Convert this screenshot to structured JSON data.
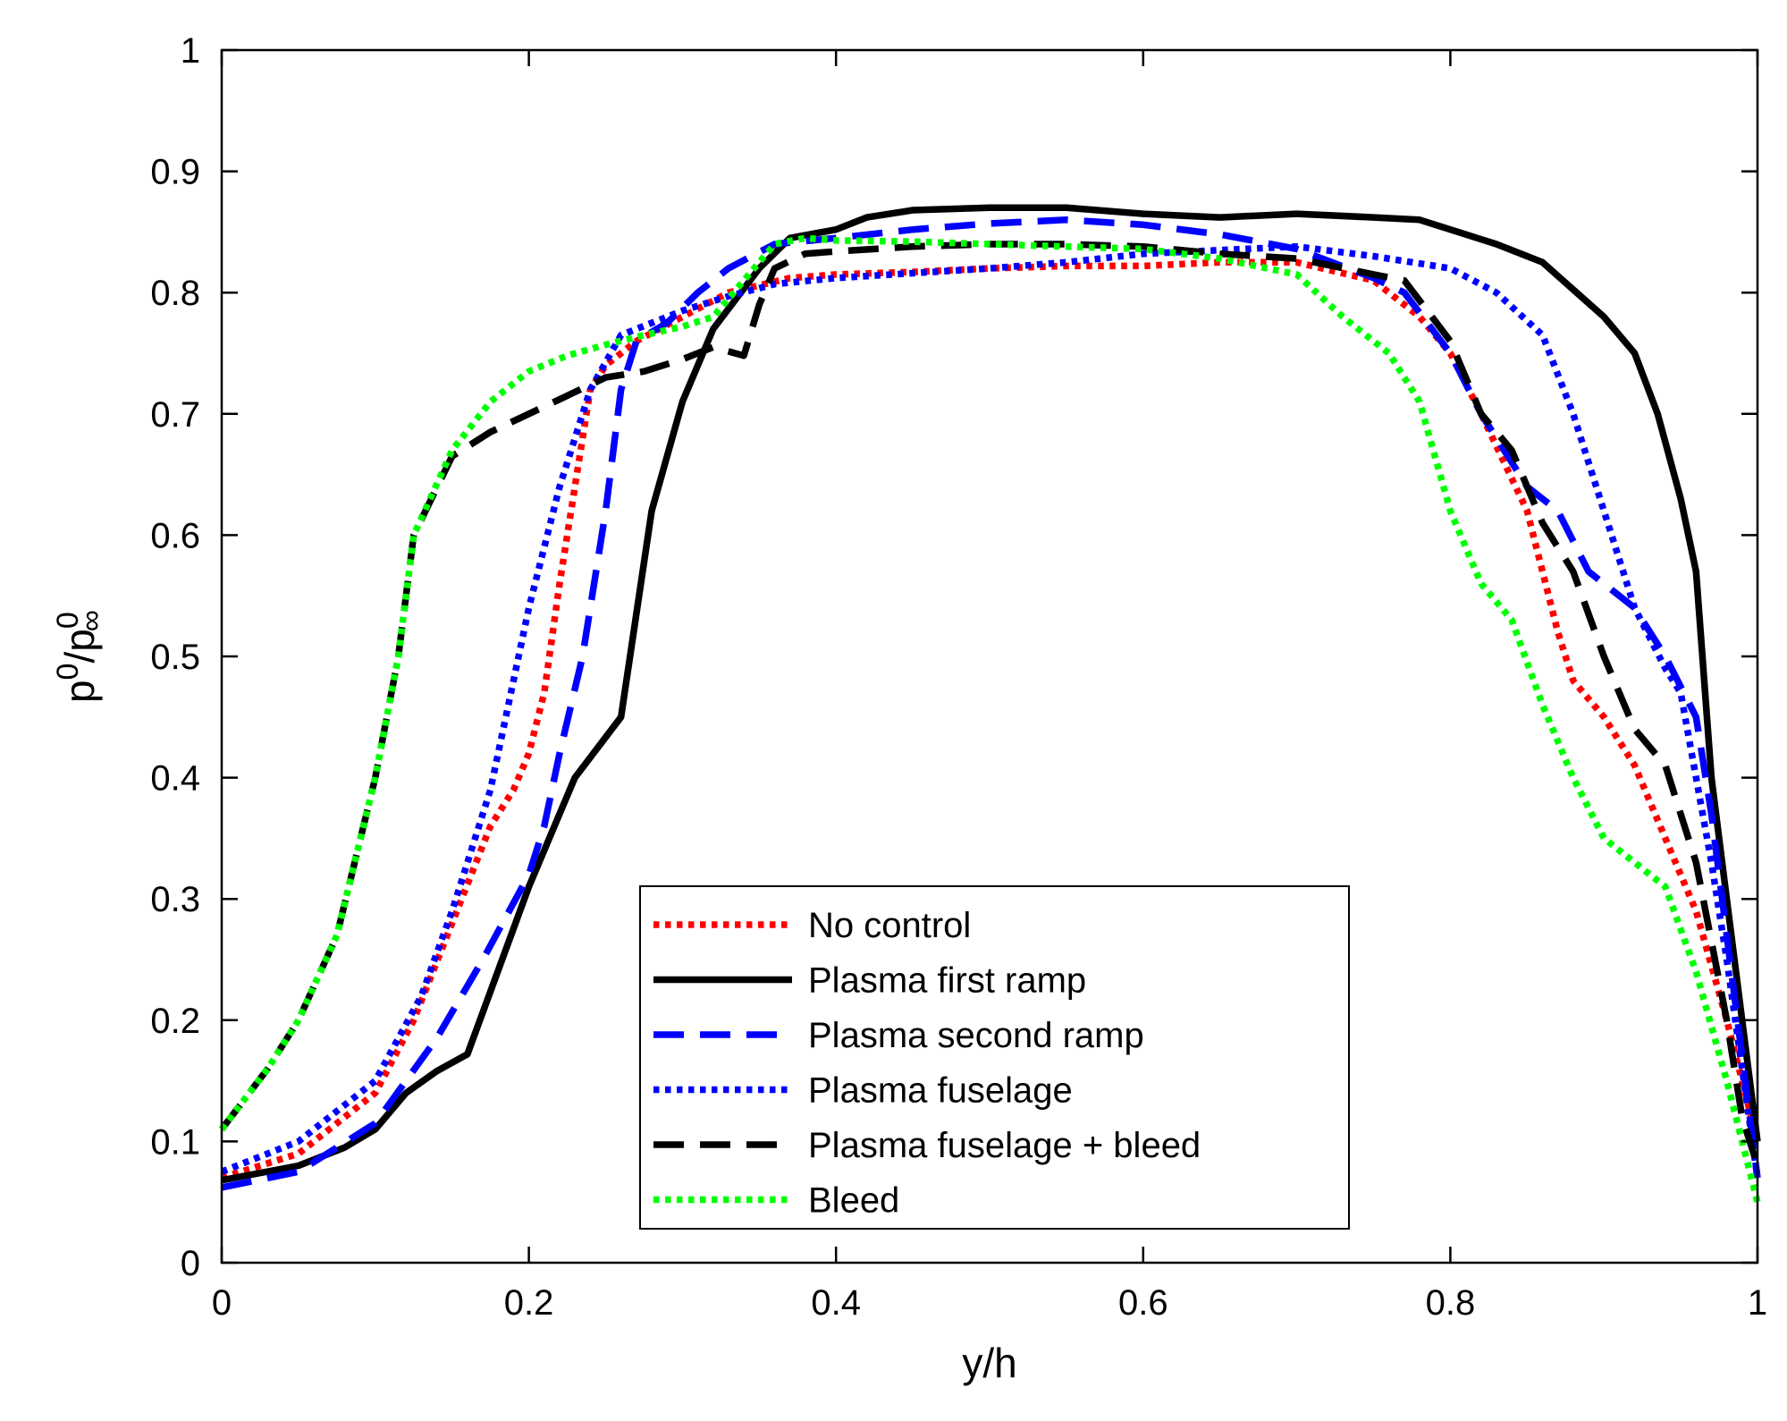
{
  "chart_data": {
    "type": "line",
    "title": "",
    "xlabel": "y/h",
    "ylabel": {
      "base": "p",
      "sup": "0",
      "slash": "/",
      "base2": "p",
      "sub2": "∞",
      "sup2": "0"
    },
    "xlim": [
      0,
      1
    ],
    "ylim": [
      0,
      1
    ],
    "grid": false,
    "legend_position": "bottom-center",
    "xticks": [
      0,
      0.2,
      0.4,
      0.6,
      0.8,
      1
    ],
    "xtick_labels": [
      "0",
      "0.2",
      "0.4",
      "0.6",
      "0.8",
      "1"
    ],
    "yticks": [
      0,
      0.1,
      0.2,
      0.3,
      0.4,
      0.5,
      0.6,
      0.7,
      0.8,
      0.9,
      1
    ],
    "ytick_labels": [
      "0",
      "0.1",
      "0.2",
      "0.3",
      "0.4",
      "0.5",
      "0.6",
      "0.7",
      "0.8",
      "0.9",
      "1"
    ],
    "series": [
      {
        "name": "No control",
        "color": "#ff0000",
        "style": "dotted",
        "points": [
          [
            0,
            0.07
          ],
          [
            0.05,
            0.09
          ],
          [
            0.1,
            0.14
          ],
          [
            0.125,
            0.2
          ],
          [
            0.15,
            0.28
          ],
          [
            0.175,
            0.36
          ],
          [
            0.19,
            0.39
          ],
          [
            0.2,
            0.42
          ],
          [
            0.21,
            0.47
          ],
          [
            0.22,
            0.56
          ],
          [
            0.23,
            0.64
          ],
          [
            0.24,
            0.72
          ],
          [
            0.25,
            0.74
          ],
          [
            0.27,
            0.76
          ],
          [
            0.3,
            0.78
          ],
          [
            0.33,
            0.8
          ],
          [
            0.37,
            0.812
          ],
          [
            0.4,
            0.815
          ],
          [
            0.45,
            0.817
          ],
          [
            0.5,
            0.82
          ],
          [
            0.55,
            0.822
          ],
          [
            0.6,
            0.822
          ],
          [
            0.65,
            0.825
          ],
          [
            0.7,
            0.825
          ],
          [
            0.75,
            0.81
          ],
          [
            0.78,
            0.78
          ],
          [
            0.8,
            0.75
          ],
          [
            0.82,
            0.7
          ],
          [
            0.85,
            0.62
          ],
          [
            0.87,
            0.52
          ],
          [
            0.88,
            0.48
          ],
          [
            0.9,
            0.45
          ],
          [
            0.92,
            0.41
          ],
          [
            0.94,
            0.35
          ],
          [
            0.96,
            0.29
          ],
          [
            0.98,
            0.2
          ],
          [
            1,
            0.1
          ]
        ]
      },
      {
        "name": "Plasma first ramp",
        "color": "#000000",
        "style": "solid",
        "points": [
          [
            0,
            0.068
          ],
          [
            0.05,
            0.08
          ],
          [
            0.08,
            0.095
          ],
          [
            0.1,
            0.11
          ],
          [
            0.12,
            0.14
          ],
          [
            0.14,
            0.158
          ],
          [
            0.16,
            0.172
          ],
          [
            0.2,
            0.31
          ],
          [
            0.23,
            0.4
          ],
          [
            0.26,
            0.45
          ],
          [
            0.28,
            0.62
          ],
          [
            0.3,
            0.71
          ],
          [
            0.32,
            0.77
          ],
          [
            0.35,
            0.82
          ],
          [
            0.37,
            0.845
          ],
          [
            0.4,
            0.852
          ],
          [
            0.42,
            0.862
          ],
          [
            0.45,
            0.868
          ],
          [
            0.5,
            0.87
          ],
          [
            0.55,
            0.87
          ],
          [
            0.6,
            0.865
          ],
          [
            0.65,
            0.862
          ],
          [
            0.7,
            0.865
          ],
          [
            0.75,
            0.862
          ],
          [
            0.78,
            0.86
          ],
          [
            0.8,
            0.852
          ],
          [
            0.83,
            0.84
          ],
          [
            0.86,
            0.825
          ],
          [
            0.9,
            0.78
          ],
          [
            0.92,
            0.75
          ],
          [
            0.935,
            0.7
          ],
          [
            0.95,
            0.63
          ],
          [
            0.96,
            0.57
          ],
          [
            0.97,
            0.4
          ],
          [
            0.98,
            0.3
          ],
          [
            0.99,
            0.2
          ],
          [
            1,
            0.1
          ]
        ]
      },
      {
        "name": "Plasma second ramp",
        "color": "#0000ff",
        "style": "dashed",
        "points": [
          [
            0,
            0.062
          ],
          [
            0.05,
            0.075
          ],
          [
            0.1,
            0.115
          ],
          [
            0.14,
            0.185
          ],
          [
            0.17,
            0.25
          ],
          [
            0.2,
            0.32
          ],
          [
            0.21,
            0.36
          ],
          [
            0.22,
            0.42
          ],
          [
            0.235,
            0.5
          ],
          [
            0.25,
            0.62
          ],
          [
            0.26,
            0.72
          ],
          [
            0.27,
            0.76
          ],
          [
            0.29,
            0.775
          ],
          [
            0.31,
            0.8
          ],
          [
            0.33,
            0.82
          ],
          [
            0.36,
            0.84
          ],
          [
            0.4,
            0.845
          ],
          [
            0.45,
            0.852
          ],
          [
            0.5,
            0.857
          ],
          [
            0.55,
            0.86
          ],
          [
            0.6,
            0.856
          ],
          [
            0.65,
            0.848
          ],
          [
            0.7,
            0.836
          ],
          [
            0.75,
            0.812
          ],
          [
            0.77,
            0.8
          ],
          [
            0.8,
            0.75
          ],
          [
            0.82,
            0.7
          ],
          [
            0.85,
            0.64
          ],
          [
            0.87,
            0.62
          ],
          [
            0.89,
            0.57
          ],
          [
            0.92,
            0.54
          ],
          [
            0.94,
            0.5
          ],
          [
            0.96,
            0.45
          ],
          [
            0.97,
            0.37
          ],
          [
            0.98,
            0.27
          ],
          [
            0.99,
            0.17
          ],
          [
            1,
            0.07
          ]
        ]
      },
      {
        "name": "Plasma fuselage",
        "color": "#0000ff",
        "style": "dotted",
        "points": [
          [
            0,
            0.075
          ],
          [
            0.05,
            0.1
          ],
          [
            0.1,
            0.15
          ],
          [
            0.13,
            0.22
          ],
          [
            0.15,
            0.29
          ],
          [
            0.175,
            0.39
          ],
          [
            0.2,
            0.54
          ],
          [
            0.22,
            0.64
          ],
          [
            0.24,
            0.72
          ],
          [
            0.26,
            0.765
          ],
          [
            0.28,
            0.775
          ],
          [
            0.3,
            0.785
          ],
          [
            0.33,
            0.797
          ],
          [
            0.36,
            0.807
          ],
          [
            0.4,
            0.812
          ],
          [
            0.45,
            0.816
          ],
          [
            0.5,
            0.82
          ],
          [
            0.55,
            0.825
          ],
          [
            0.6,
            0.832
          ],
          [
            0.65,
            0.835
          ],
          [
            0.7,
            0.838
          ],
          [
            0.75,
            0.83
          ],
          [
            0.8,
            0.82
          ],
          [
            0.83,
            0.8
          ],
          [
            0.86,
            0.765
          ],
          [
            0.88,
            0.7
          ],
          [
            0.9,
            0.62
          ],
          [
            0.92,
            0.54
          ],
          [
            0.94,
            0.49
          ],
          [
            0.95,
            0.47
          ],
          [
            0.96,
            0.4
          ],
          [
            0.97,
            0.33
          ],
          [
            0.98,
            0.25
          ],
          [
            0.99,
            0.16
          ],
          [
            1,
            0.07
          ]
        ]
      },
      {
        "name": "Plasma fuselage + bleed",
        "color": "#000000",
        "style": "dashed",
        "points": [
          [
            0,
            0.11
          ],
          [
            0.03,
            0.16
          ],
          [
            0.05,
            0.2
          ],
          [
            0.075,
            0.27
          ],
          [
            0.1,
            0.4
          ],
          [
            0.115,
            0.5
          ],
          [
            0.125,
            0.6
          ],
          [
            0.15,
            0.665
          ],
          [
            0.175,
            0.685
          ],
          [
            0.2,
            0.7
          ],
          [
            0.225,
            0.715
          ],
          [
            0.25,
            0.73
          ],
          [
            0.275,
            0.735
          ],
          [
            0.3,
            0.745
          ],
          [
            0.32,
            0.755
          ],
          [
            0.34,
            0.748
          ],
          [
            0.35,
            0.79
          ],
          [
            0.36,
            0.82
          ],
          [
            0.38,
            0.832
          ],
          [
            0.4,
            0.834
          ],
          [
            0.45,
            0.838
          ],
          [
            0.5,
            0.84
          ],
          [
            0.55,
            0.84
          ],
          [
            0.6,
            0.838
          ],
          [
            0.65,
            0.832
          ],
          [
            0.7,
            0.828
          ],
          [
            0.75,
            0.815
          ],
          [
            0.77,
            0.81
          ],
          [
            0.8,
            0.76
          ],
          [
            0.82,
            0.7
          ],
          [
            0.84,
            0.67
          ],
          [
            0.86,
            0.61
          ],
          [
            0.88,
            0.57
          ],
          [
            0.9,
            0.5
          ],
          [
            0.92,
            0.44
          ],
          [
            0.94,
            0.41
          ],
          [
            0.96,
            0.33
          ],
          [
            0.98,
            0.2
          ],
          [
            0.99,
            0.12
          ],
          [
            1,
            0.08
          ]
        ]
      },
      {
        "name": "Bleed",
        "color": "#00ff00",
        "style": "dotted",
        "points": [
          [
            0,
            0.11
          ],
          [
            0.03,
            0.16
          ],
          [
            0.05,
            0.2
          ],
          [
            0.075,
            0.27
          ],
          [
            0.1,
            0.4
          ],
          [
            0.115,
            0.5
          ],
          [
            0.125,
            0.6
          ],
          [
            0.15,
            0.67
          ],
          [
            0.175,
            0.71
          ],
          [
            0.2,
            0.735
          ],
          [
            0.225,
            0.748
          ],
          [
            0.25,
            0.757
          ],
          [
            0.275,
            0.765
          ],
          [
            0.3,
            0.772
          ],
          [
            0.32,
            0.78
          ],
          [
            0.34,
            0.81
          ],
          [
            0.36,
            0.84
          ],
          [
            0.38,
            0.845
          ],
          [
            0.4,
            0.843
          ],
          [
            0.45,
            0.842
          ],
          [
            0.5,
            0.84
          ],
          [
            0.55,
            0.838
          ],
          [
            0.6,
            0.836
          ],
          [
            0.65,
            0.828
          ],
          [
            0.7,
            0.815
          ],
          [
            0.73,
            0.78
          ],
          [
            0.76,
            0.75
          ],
          [
            0.78,
            0.71
          ],
          [
            0.8,
            0.62
          ],
          [
            0.82,
            0.56
          ],
          [
            0.84,
            0.53
          ],
          [
            0.86,
            0.46
          ],
          [
            0.88,
            0.4
          ],
          [
            0.9,
            0.35
          ],
          [
            0.92,
            0.33
          ],
          [
            0.94,
            0.31
          ],
          [
            0.96,
            0.24
          ],
          [
            0.98,
            0.15
          ],
          [
            1,
            0.05
          ]
        ]
      }
    ]
  }
}
